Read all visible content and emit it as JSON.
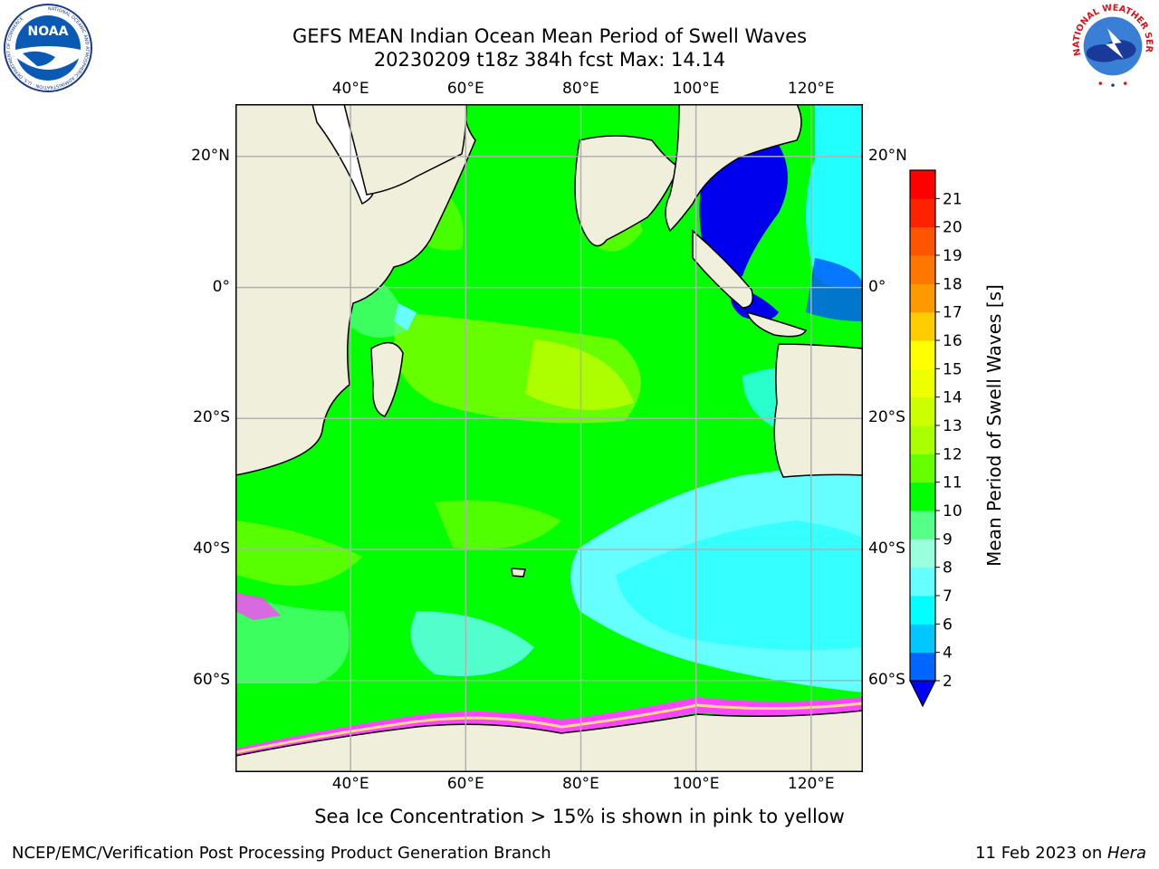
{
  "title": {
    "line1": "GEFS MEAN Indian Ocean Mean Period of Swell Waves",
    "line2": "20230209 t18z 384h fcst   Max: 14.14"
  },
  "logos": {
    "noaa_text": "NOAA",
    "noaa_ring": "NATIONAL OCEANIC AND ATMOSPHERIC ADMINISTRATION · U.S. DEPARTMENT OF COMMERCE",
    "nws_ring": "NATIONAL WEATHER SERVICE"
  },
  "map": {
    "lon_range": [
      20,
      129
    ],
    "lat_range": [
      -74,
      28
    ],
    "lon_ticks": [
      {
        "value": 40,
        "label": "40°E"
      },
      {
        "value": 60,
        "label": "60°E"
      },
      {
        "value": 80,
        "label": "80°E"
      },
      {
        "value": 100,
        "label": "100°E"
      },
      {
        "value": 120,
        "label": "120°E"
      }
    ],
    "lat_ticks": [
      {
        "value": 20,
        "label": "20°N"
      },
      {
        "value": 0,
        "label": "0°"
      },
      {
        "value": -20,
        "label": "20°S"
      },
      {
        "value": -40,
        "label": "40°S"
      },
      {
        "value": -60,
        "label": "60°S"
      }
    ],
    "grid": true,
    "colors": {
      "land": "#efefdc",
      "ocean_base": "#00ff00"
    }
  },
  "colorbar": {
    "label": "Mean Period of Swell Waves [s]",
    "ticks": [
      "2",
      "4",
      "6",
      "7",
      "8",
      "9",
      "10",
      "11",
      "12",
      "13",
      "14",
      "15",
      "16",
      "17",
      "18",
      "19",
      "20",
      "21"
    ],
    "colors": [
      "#0066ff",
      "#00c8ff",
      "#00ffff",
      "#66ffff",
      "#99ffdd",
      "#55ff88",
      "#00ff00",
      "#66ff00",
      "#aaff00",
      "#ccff00",
      "#eeff00",
      "#ffff00",
      "#ffcc00",
      "#ff9900",
      "#ff7700",
      "#ff5500",
      "#ff2200",
      "#ff0000"
    ],
    "extend_low_color": "#0000ff"
  },
  "note": "Sea Ice Concentration > 15% is shown in pink to yellow",
  "footer": {
    "left": "NCEP/EMC/Verification Post Processing Product Generation Branch",
    "right_prefix": "11 Feb 2023 on ",
    "right_machine": "Hera"
  }
}
